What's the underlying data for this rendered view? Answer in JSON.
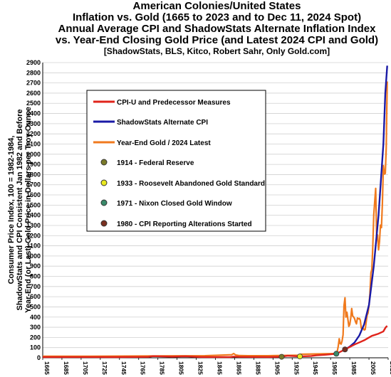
{
  "title": {
    "line1": "American Colonies/United States",
    "line2": "Inflation  vs. Gold (1665 to 2023 and  to Dec 11, 2024 Spot)",
    "line3": "Annual Average CPI and ShadowStats Alternate Inflation Index",
    "line4": "vs. Year-End Closing Gold Price (and Latest 2024 CPI and Gold)",
    "sources": "[ShadowStats, BLS, Kitco, Robert Sahr, Only Gold.com]"
  },
  "ylabel": {
    "line1": "Consumer Price Index, 100 = 1982-1984,",
    "line2": "ShadowStats and CPI Consistent Jan 1982 and Before",
    "line3": "Year-End (or Last) Gold Price in Dollars per Troy Ounce"
  },
  "legend": {
    "cpi": "CPI-U and Predecessor Measures",
    "shadow": "ShadowStats Alternate CPI",
    "gold": "Year-End Gold / 2024 Latest",
    "m1914": "1914 - Federal Reserve",
    "m1933": "1933 - Roosevelt Abandoned Gold Standard",
    "m1971": "1971 - Nixon Closed Gold Window",
    "m1980": "1980 - CPI Reporting Alterations Started"
  },
  "colors": {
    "cpi": "#e0241b",
    "shadow": "#1a1aa6",
    "gold": "#f07a1e",
    "m1914": "#7a7a2a",
    "m1933": "#e8e820",
    "m1971": "#3a8a6a",
    "m1980": "#7a3020"
  },
  "chart_data": {
    "type": "line",
    "title": "American Colonies/United States Inflation vs. Gold (1665 to 2023 and to Dec 11, 2024 Spot) Annual Average CPI and ShadowStats Alternate Inflation Index vs. Year-End Closing Gold Price (and Latest 2024 CPI and Gold)",
    "xlabel": "",
    "ylabel": "Consumer Price Index, 100 = 1982-1984, ShadowStats and CPI Consistent Jan 1982 and Before Year-End (or Last) Gold Price in Dollars per Troy Ounce",
    "xlim": [
      1665,
      2025
    ],
    "ylim": [
      0,
      2900
    ],
    "x_ticks": [
      "1665",
      "1685",
      "1705",
      "1725",
      "1745",
      "1765",
      "1785",
      "1805",
      "1825",
      "1845",
      "1865",
      "1885",
      "1905",
      "1925",
      "1945",
      "1965",
      "1985",
      "2005",
      "2025"
    ],
    "y_ticks": [
      "0",
      "100",
      "200",
      "300",
      "400",
      "500",
      "600",
      "700",
      "800",
      "900",
      "1000",
      "1100",
      "1200",
      "1300",
      "1400",
      "1500",
      "1600",
      "1700",
      "1800",
      "1900",
      "2000",
      "2100",
      "2200",
      "2300",
      "2400",
      "2500",
      "2600",
      "2700",
      "2800",
      "2900"
    ],
    "legend_position": "upper-left",
    "grid": "horizontal",
    "series": [
      {
        "name": "CPI-U and Predecessor Measures",
        "points": [
          [
            1665,
            7
          ],
          [
            1700,
            8
          ],
          [
            1740,
            7
          ],
          [
            1775,
            9
          ],
          [
            1780,
            16
          ],
          [
            1800,
            11
          ],
          [
            1814,
            15
          ],
          [
            1830,
            8
          ],
          [
            1860,
            7
          ],
          [
            1864,
            12
          ],
          [
            1870,
            9
          ],
          [
            1900,
            8
          ],
          [
            1914,
            10
          ],
          [
            1920,
            20
          ],
          [
            1933,
            13
          ],
          [
            1945,
            18
          ],
          [
            1950,
            24
          ],
          [
            1960,
            30
          ],
          [
            1971,
            40
          ],
          [
            1980,
            82
          ],
          [
            1990,
            131
          ],
          [
            2000,
            172
          ],
          [
            2008,
            215
          ],
          [
            2015,
            237
          ],
          [
            2020,
            259
          ],
          [
            2022,
            293
          ],
          [
            2023,
            305
          ],
          [
            2024,
            313
          ]
        ]
      },
      {
        "name": "ShadowStats Alternate CPI",
        "points": [
          [
            1980,
            82
          ],
          [
            1985,
            110
          ],
          [
            1990,
            150
          ],
          [
            1995,
            220
          ],
          [
            2000,
            330
          ],
          [
            2005,
            520
          ],
          [
            2010,
            900
          ],
          [
            2015,
            1400
          ],
          [
            2020,
            2100
          ],
          [
            2022,
            2600
          ],
          [
            2024,
            2870
          ]
        ]
      },
      {
        "name": "Year-End Gold / 2024 Latest",
        "points": [
          [
            1665,
            15
          ],
          [
            1700,
            15
          ],
          [
            1790,
            19
          ],
          [
            1834,
            20
          ],
          [
            1862,
            30
          ],
          [
            1864,
            42
          ],
          [
            1866,
            28
          ],
          [
            1870,
            22
          ],
          [
            1879,
            20
          ],
          [
            1900,
            20
          ],
          [
            1933,
            26
          ],
          [
            1934,
            35
          ],
          [
            1968,
            41
          ],
          [
            1970,
            37
          ],
          [
            1972,
            65
          ],
          [
            1973,
            112
          ],
          [
            1974,
            187
          ],
          [
            1975,
            140
          ],
          [
            1976,
            135
          ],
          [
            1977,
            165
          ],
          [
            1978,
            226
          ],
          [
            1979,
            512
          ],
          [
            1980,
            590
          ],
          [
            1981,
            400
          ],
          [
            1982,
            448
          ],
          [
            1983,
            382
          ],
          [
            1984,
            309
          ],
          [
            1985,
            327
          ],
          [
            1986,
            391
          ],
          [
            1987,
            484
          ],
          [
            1988,
            410
          ],
          [
            1989,
            401
          ],
          [
            1990,
            386
          ],
          [
            1991,
            353
          ],
          [
            1992,
            333
          ],
          [
            1993,
            391
          ],
          [
            1994,
            383
          ],
          [
            1995,
            387
          ],
          [
            1996,
            369
          ],
          [
            1997,
            290
          ],
          [
            1998,
            288
          ],
          [
            1999,
            290
          ],
          [
            2000,
            273
          ],
          [
            2001,
            277
          ],
          [
            2002,
            343
          ],
          [
            2003,
            417
          ],
          [
            2004,
            438
          ],
          [
            2005,
            513
          ],
          [
            2006,
            632
          ],
          [
            2007,
            834
          ],
          [
            2008,
            870
          ],
          [
            2009,
            1087
          ],
          [
            2010,
            1405
          ],
          [
            2011,
            1531
          ],
          [
            2012,
            1664
          ],
          [
            2013,
            1204
          ],
          [
            2014,
            1206
          ],
          [
            2015,
            1060
          ],
          [
            2016,
            1145
          ],
          [
            2017,
            1303
          ],
          [
            2018,
            1279
          ],
          [
            2019,
            1517
          ],
          [
            2020,
            1888
          ],
          [
            2021,
            1805
          ],
          [
            2022,
            1812
          ],
          [
            2023,
            2063
          ],
          [
            2024,
            2715
          ]
        ]
      }
    ],
    "markers": [
      {
        "label": "1914 - Federal Reserve",
        "x": 1914,
        "y": 10
      },
      {
        "label": "1933 - Roosevelt Abandoned Gold Standard",
        "x": 1933,
        "y": 13
      },
      {
        "label": "1971 - Nixon Closed Gold Window",
        "x": 1971,
        "y": 40
      },
      {
        "label": "1980 - CPI Reporting Alterations Started",
        "x": 1980,
        "y": 82
      }
    ]
  }
}
